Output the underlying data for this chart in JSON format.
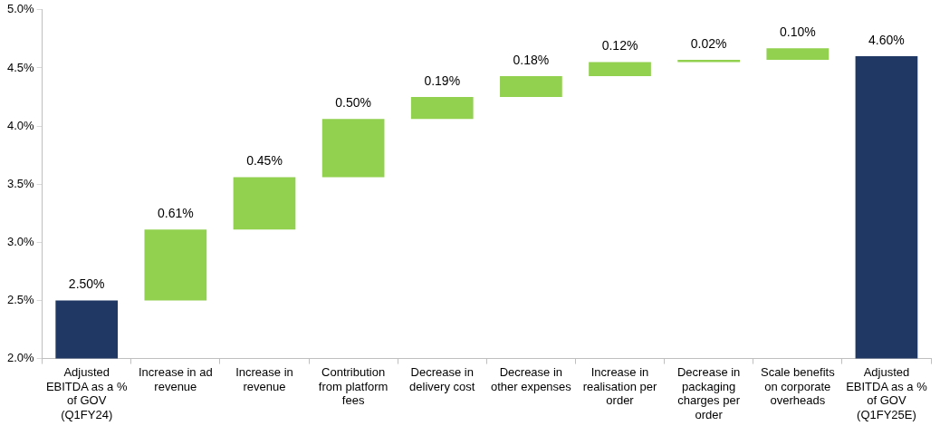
{
  "chart_data": {
    "type": "bar",
    "categories": [
      "Adjusted EBITDA as a % of GOV (Q1FY24)",
      "Increase in ad revenue",
      "Increase in revenue",
      "Contribution from platform fees",
      "Decrease in delivery cost",
      "Decrease in other expenses",
      "Increase in realisation per order",
      "Decrease in packaging charges per order",
      "Scale benefits on corporate overheads",
      "Adjusted EBITDA as a % of GOV (Q1FY25E)"
    ],
    "values": [
      2.5,
      0.61,
      0.45,
      0.5,
      0.19,
      0.18,
      0.12,
      0.02,
      0.1,
      4.6
    ],
    "base": [
      null,
      2.5,
      3.11,
      3.56,
      4.06,
      4.25,
      4.43,
      4.55,
      4.57,
      null
    ],
    "colors": [
      "#1f3864",
      "#92d050",
      "#92d050",
      "#92d050",
      "#92d050",
      "#92d050",
      "#92d050",
      "#92d050",
      "#92d050",
      "#1f3864"
    ],
    "value_labels": [
      "2.50%",
      "0.61%",
      "0.45%",
      "0.50%",
      "0.19%",
      "0.18%",
      "0.12%",
      "0.02%",
      "0.10%",
      "4.60%"
    ],
    "ylim": [
      2.0,
      5.0
    ],
    "yticks": [
      {
        "value": 2.0,
        "label": "2.0%"
      },
      {
        "value": 2.5,
        "label": "2.5%"
      },
      {
        "value": 3.0,
        "label": "3.0%"
      },
      {
        "value": 3.5,
        "label": "3.5%"
      },
      {
        "value": 4.0,
        "label": "4.0%"
      },
      {
        "value": 4.5,
        "label": "4.5%"
      },
      {
        "value": 5.0,
        "label": "5.0%"
      }
    ],
    "grid": false,
    "legend": false
  }
}
